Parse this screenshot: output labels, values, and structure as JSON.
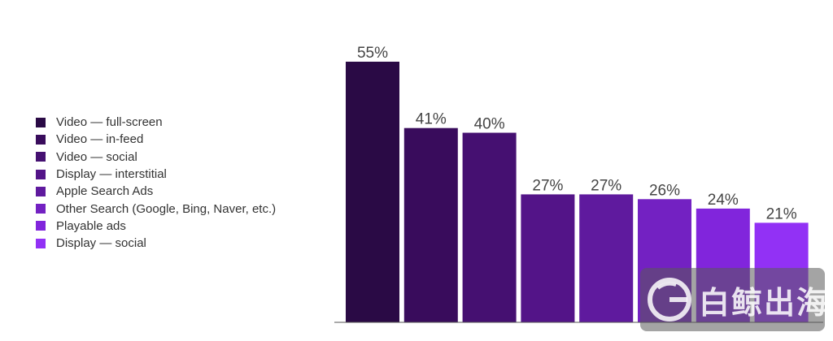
{
  "chart_data": {
    "type": "bar",
    "title": "",
    "xlabel": "",
    "ylabel": "",
    "ylim": [
      0,
      55
    ],
    "grid": false,
    "legend_position": "left",
    "categories": [
      "Video — full-screen",
      "Video — in-feed",
      "Video — social",
      "Display — interstitial",
      "Apple Search Ads",
      "Other Search (Google, Bing, Naver, etc.)",
      "Playable ads",
      "Display — social"
    ],
    "values": [
      55,
      41,
      40,
      27,
      27,
      26,
      24,
      21
    ],
    "value_labels": [
      "55%",
      "41%",
      "40%",
      "27%",
      "27%",
      "26%",
      "24%",
      "21%"
    ],
    "colors": [
      "#2a0a45",
      "#390c5c",
      "#451071",
      "#531488",
      "#5f1a9e",
      "#7321c2",
      "#8125dc",
      "#9231f5"
    ]
  },
  "watermark": {
    "text": "白鲸出海"
  }
}
